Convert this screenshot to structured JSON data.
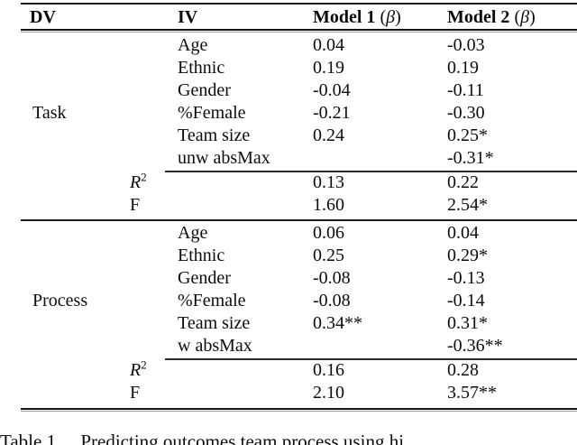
{
  "table": {
    "header": {
      "dv": "DV",
      "iv": "IV",
      "model1": "Model 1",
      "model2": "Model 2",
      "paren_open": "(",
      "beta": "β",
      "paren_close": ")"
    },
    "sections": [
      {
        "dv_label": "Task",
        "rows": [
          {
            "iv": "Age",
            "m1": "0.04",
            "m2": "-0.03"
          },
          {
            "iv": "Ethnic",
            "m1": "0.19",
            "m2": "0.19"
          },
          {
            "iv": "Gender",
            "m1": "-0.04",
            "m2": "-0.11"
          },
          {
            "iv": "%Female",
            "m1": "-0.21",
            "m2": "-0.30"
          },
          {
            "iv": "Team size",
            "m1": "0.24",
            "m2": "0.25*"
          },
          {
            "iv": "unw absMax",
            "m1": "",
            "m2": "-0.31*"
          }
        ],
        "stats": [
          {
            "label": "R",
            "sup": "2",
            "m1": "0.13",
            "m2": "0.22"
          },
          {
            "label": "F",
            "sup": "",
            "m1": "1.60",
            "m2": "2.54*"
          }
        ]
      },
      {
        "dv_label": "Process",
        "rows": [
          {
            "iv": "Age",
            "m1": "0.06",
            "m2": "0.04"
          },
          {
            "iv": "Ethnic",
            "m1": "0.25",
            "m2": "0.29*"
          },
          {
            "iv": "Gender",
            "m1": "-0.08",
            "m2": "-0.13"
          },
          {
            "iv": "%Female",
            "m1": "-0.08",
            "m2": "-0.14"
          },
          {
            "iv": "Team size",
            "m1": "0.34**",
            "m2": "0.31*"
          },
          {
            "iv": "w absMax",
            "m1": "",
            "m2": "-0.36**"
          }
        ],
        "stats": [
          {
            "label": "R",
            "sup": "2",
            "m1": "0.16",
            "m2": "0.28"
          },
          {
            "label": "F",
            "sup": "",
            "m1": "2.10",
            "m2": "3.57**"
          }
        ]
      }
    ]
  },
  "caption": {
    "label": "Table 1.",
    "text": "Predicting outcomes team process using hi"
  }
}
